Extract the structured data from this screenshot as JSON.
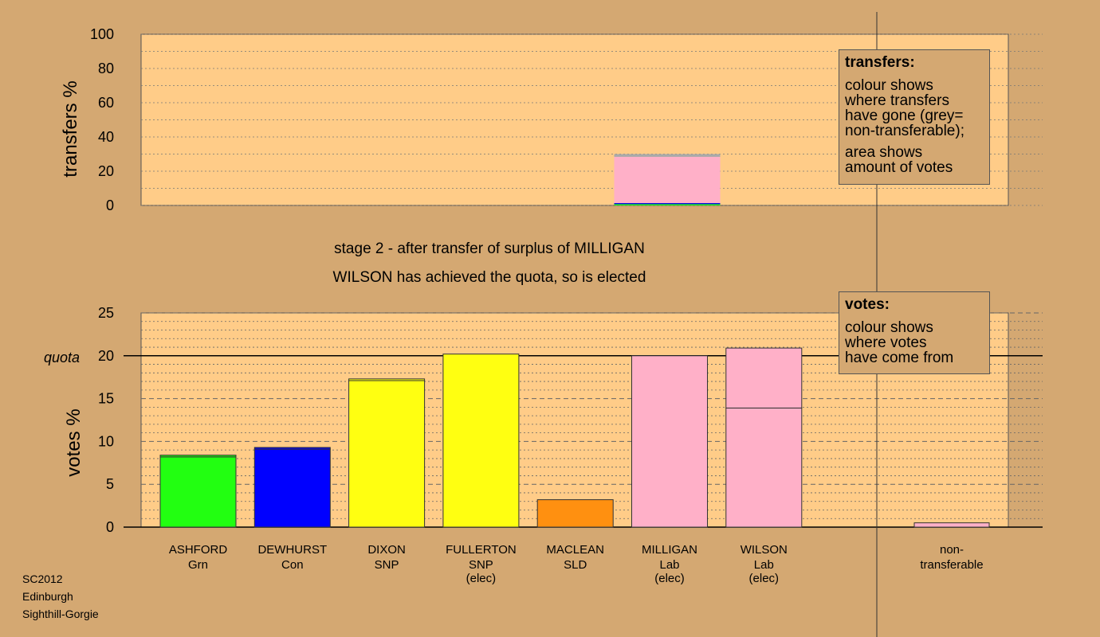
{
  "chart_data": [
    {
      "type": "bar",
      "stacked": true,
      "ylabel": "transfers %",
      "ylim": [
        0,
        100
      ],
      "yticks": [
        "0",
        "20",
        "40",
        "60",
        "80",
        "100"
      ],
      "bars": [
        {
          "category_index": 5,
          "segments": [
            {
              "value": 0.7,
              "color": "#22ff11"
            },
            {
              "value": 0.7,
              "color": "#1010e0"
            },
            {
              "value": 27.0,
              "color": "#ffb0c8"
            },
            {
              "value": 1.6,
              "color": "#aaaaaa"
            }
          ]
        }
      ],
      "grid": true
    },
    {
      "type": "bar",
      "stacked": true,
      "ylabel": "votes %",
      "ylim": [
        0,
        25
      ],
      "yticks": [
        "0",
        "5",
        "10",
        "15",
        "20",
        "25"
      ],
      "quota_label": "quota",
      "quota": 20,
      "categories": [
        {
          "name": "ASHFORD",
          "party": "Grn",
          "status": "",
          "segments": [
            {
              "value": 8.2,
              "color": "#22ff11"
            },
            {
              "value": 0.2,
              "color": "#22ff11"
            }
          ]
        },
        {
          "name": "DEWHURST",
          "party": "Con",
          "status": "",
          "segments": [
            {
              "value": 9.1,
              "color": "#0000ff"
            },
            {
              "value": 0.2,
              "color": "#0000ff"
            }
          ]
        },
        {
          "name": "DIXON",
          "party": "SNP",
          "status": "",
          "segments": [
            {
              "value": 17.1,
              "color": "#ffff11"
            },
            {
              "value": 0.2,
              "color": "#ffff11"
            }
          ]
        },
        {
          "name": "FULLERTON",
          "party": "SNP",
          "status": "(elec)",
          "segments": [
            {
              "value": 20.2,
              "color": "#ffff11"
            }
          ]
        },
        {
          "name": "MACLEAN",
          "party": "SLD",
          "status": "",
          "segments": [
            {
              "value": 3.2,
              "color": "#ff9010"
            }
          ]
        },
        {
          "name": "MILLIGAN",
          "party": "Lab",
          "status": "(elec)",
          "segments": [
            {
              "value": 20.0,
              "color": "#ffb0c8"
            }
          ]
        },
        {
          "name": "WILSON",
          "party": "Lab",
          "status": "(elec)",
          "segments": [
            {
              "value": 13.9,
              "color": "#ffb0c8"
            },
            {
              "value": 7.0,
              "color": "#ffb0c8"
            }
          ]
        }
      ],
      "nontransferable": {
        "label_lines": [
          "non-",
          "transferable"
        ],
        "value": 0.5,
        "color": "#ffb0c8"
      },
      "grid": true
    }
  ],
  "stage_text": "stage 2 - after transfer of surplus of MILLIGAN",
  "elected_text": "WILSON has achieved the quota, so is elected",
  "legend_transfers": {
    "title": "transfers:",
    "lines_a": [
      "colour shows",
      "where transfers",
      "have gone (grey=",
      "non-transferable);"
    ],
    "lines_b": [
      "area shows",
      "amount of votes"
    ]
  },
  "legend_votes": {
    "title": "votes:",
    "lines": [
      "colour shows",
      "where votes",
      "have come from"
    ]
  },
  "footer": [
    "SC2012",
    "Edinburgh",
    "Sighthill-Gorgie"
  ],
  "colors": {
    "background": "#d4a872",
    "plot_area": "#ffcc88"
  }
}
